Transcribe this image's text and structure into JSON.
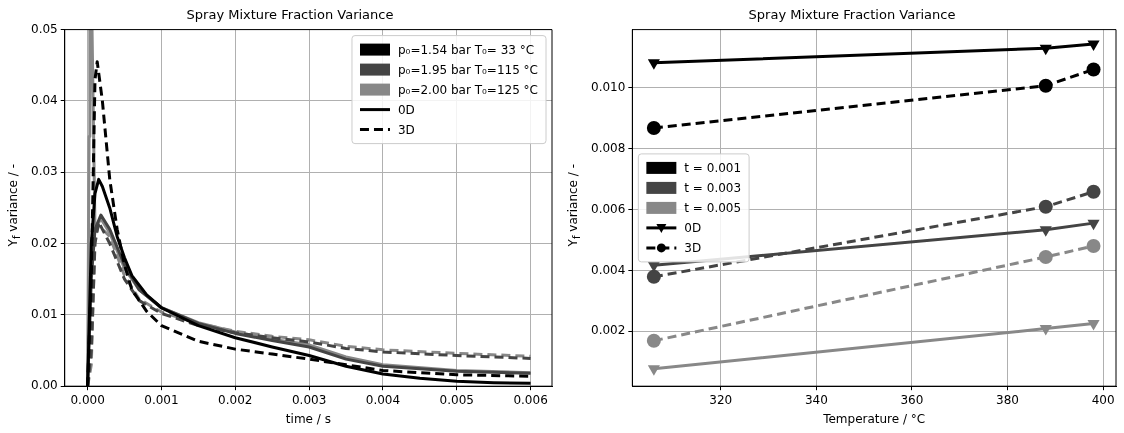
{
  "chart_data": [
    {
      "type": "line",
      "title": "Spray Mixture Fraction Variance",
      "xlabel": "time / s",
      "ylabel": "Y$_{f}$ variance / -",
      "xlim": [
        -0.00031,
        0.00629
      ],
      "ylim": [
        0,
        0.05
      ],
      "xticks": [
        {
          "value": 0,
          "label": "0.000"
        },
        {
          "value": 0.001,
          "label": "0.001"
        },
        {
          "value": 0.002,
          "label": "0.002"
        },
        {
          "value": 0.003,
          "label": "0.003"
        },
        {
          "value": 0.004,
          "label": "0.004"
        },
        {
          "value": 0.005,
          "label": "0.005"
        },
        {
          "value": 0.006,
          "label": "0.006"
        }
      ],
      "yticks": [
        {
          "value": 0,
          "label": "0.00"
        },
        {
          "value": 0.01,
          "label": "0.01"
        },
        {
          "value": 0.02,
          "label": "0.02"
        },
        {
          "value": 0.03,
          "label": "0.03"
        },
        {
          "value": 0.04,
          "label": "0.04"
        },
        {
          "value": 0.05,
          "label": "0.05"
        }
      ],
      "grid": true,
      "legend": "top right",
      "series": [
        {
          "name": "p₀=1.54 bar T₀= 33 °C",
          "color": "#000000",
          "line_style": "solid",
          "x": [
            0,
            5e-05,
            0.0001,
            0.00015,
            0.0002,
            0.0003,
            0.0004,
            0.0005,
            0.0006,
            0.0008,
            0.001,
            0.0015,
            0.002,
            0.0025,
            0.003,
            0.0035,
            0.004,
            0.0045,
            0.005,
            0.0055,
            0.006
          ],
          "values": [
            0,
            0.02,
            0.027,
            0.029,
            0.028,
            0.025,
            0.021,
            0.018,
            0.0155,
            0.0128,
            0.011,
            0.0085,
            0.0068,
            0.0055,
            0.0043,
            0.0028,
            0.0017,
            0.0011,
            0.0007,
            0.0005,
            0.0004
          ]
        },
        {
          "color": "#000000",
          "line_style": "dashed",
          "x": [
            0,
            5e-05,
            0.0001,
            0.00013,
            0.0002,
            0.0003,
            0.0004,
            0.0005,
            0.0006,
            0.0008,
            0.001,
            0.0015,
            0.002,
            0.0025,
            0.003,
            0.0035,
            0.004,
            0.005,
            0.006
          ],
          "values": [
            0,
            0.015,
            0.043,
            0.0455,
            0.04,
            0.029,
            0.022,
            0.017,
            0.0135,
            0.0105,
            0.0085,
            0.0063,
            0.0052,
            0.0045,
            0.0038,
            0.003,
            0.0022,
            0.0016,
            0.0014
          ]
        },
        {
          "name": "p₀=1.95 bar T₀=115 °C",
          "color": "#444444",
          "line_style": "solid",
          "x": [
            0,
            5e-05,
            0.0001,
            0.00018,
            0.0003,
            0.0005,
            0.0007,
            0.001,
            0.0015,
            0.002,
            0.0025,
            0.003,
            0.0035,
            0.004,
            0.005,
            0.006
          ],
          "values": [
            0,
            0.015,
            0.022,
            0.024,
            0.022,
            0.017,
            0.0135,
            0.011,
            0.0088,
            0.0074,
            0.0064,
            0.0055,
            0.0038,
            0.0028,
            0.0021,
            0.0018
          ]
        },
        {
          "color": "#444444",
          "line_style": "dashed",
          "x": [
            0,
            5e-05,
            0.0001,
            0.00015,
            0.0003,
            0.0005,
            0.0007,
            0.001,
            0.0015,
            0.002,
            0.0025,
            0.003,
            0.0035,
            0.004,
            0.005,
            0.006
          ],
          "values": [
            0,
            0.005,
            0.02,
            0.023,
            0.02,
            0.015,
            0.012,
            0.0102,
            0.0085,
            0.0075,
            0.0068,
            0.0062,
            0.0053,
            0.0048,
            0.0043,
            0.0039
          ]
        },
        {
          "name": "p₀=2.00 bar T₀=125 °C",
          "color": "#888888",
          "line_style": "solid",
          "x": [
            0,
            2e-05,
            3e-05,
            6e-05,
            0.0001,
            0.00018,
            0.0003,
            0.0005,
            0.0007,
            0.001,
            0.0015,
            0.002,
            0.0025,
            0.003,
            0.0035,
            0.004,
            0.005,
            0.006
          ],
          "values": [
            0,
            0.035,
            0.05,
            0.05,
            0.022,
            0.0235,
            0.0215,
            0.0165,
            0.0135,
            0.011,
            0.0089,
            0.0076,
            0.0066,
            0.0058,
            0.0041,
            0.003,
            0.0022,
            0.0019
          ]
        },
        {
          "color": "#888888",
          "line_style": "dashed",
          "x": [
            0,
            5e-05,
            0.0001,
            0.00015,
            0.0003,
            0.0005,
            0.0007,
            0.001,
            0.0015,
            0.002,
            0.0025,
            0.003,
            0.0035,
            0.004,
            0.005,
            0.006
          ],
          "values": [
            0,
            0.003,
            0.021,
            0.0225,
            0.021,
            0.0155,
            0.0122,
            0.0104,
            0.0088,
            0.0077,
            0.007,
            0.0065,
            0.0056,
            0.0051,
            0.0046,
            0.0042
          ]
        },
        {
          "name": "0D",
          "color": "#000000",
          "line_style": "solid"
        },
        {
          "name": "3D",
          "color": "#000000",
          "line_style": "dashed"
        }
      ]
    },
    {
      "type": "line",
      "title": "Spray Mixture Fraction Variance",
      "xlabel": "Temperature / °C",
      "ylabel": "Y$_{f}$ variance / -",
      "xlim": [
        301.5,
        402.7
      ],
      "ylim": [
        0.0002,
        0.0119
      ],
      "xticks": [
        320,
        340,
        360,
        380,
        400
      ],
      "yticks": [
        {
          "value": 0.002,
          "label": "0.002"
        },
        {
          "value": 0.004,
          "label": "0.004"
        },
        {
          "value": 0.006,
          "label": "0.006"
        },
        {
          "value": 0.008,
          "label": "0.008"
        },
        {
          "value": 0.01,
          "label": "0.010"
        }
      ],
      "grid": true,
      "legend": "center left",
      "series": [
        {
          "name": "t = 0.001",
          "color": "#000000",
          "line_style": "solid",
          "marker": "triangle",
          "x": [
            306,
            388,
            398
          ],
          "values": [
            0.01081,
            0.01129,
            0.01143
          ]
        },
        {
          "color": "#000000",
          "line_style": "dashed",
          "marker": "circle",
          "x": [
            306,
            388,
            398
          ],
          "values": [
            0.00867,
            0.01006,
            0.01059
          ]
        },
        {
          "name": "t = 0.003",
          "color": "#444444",
          "line_style": "solid",
          "marker": "triangle",
          "x": [
            306,
            388,
            398
          ],
          "values": [
            0.00417,
            0.00533,
            0.00555
          ]
        },
        {
          "color": "#444444",
          "line_style": "dashed",
          "marker": "circle",
          "x": [
            306,
            388,
            398
          ],
          "values": [
            0.00379,
            0.00609,
            0.00658
          ]
        },
        {
          "name": "t = 0.005",
          "color": "#888888",
          "line_style": "solid",
          "marker": "triangle",
          "x": [
            306,
            388,
            398
          ],
          "values": [
            0.00077,
            0.00209,
            0.00226
          ]
        },
        {
          "color": "#888888",
          "line_style": "dashed",
          "marker": "circle",
          "x": [
            306,
            388,
            398
          ],
          "values": [
            0.00169,
            0.00444,
            0.0048
          ]
        },
        {
          "name": "0D",
          "color": "#000000",
          "line_style": "solid",
          "marker": "triangle"
        },
        {
          "name": "3D",
          "color": "#000000",
          "line_style": "dashed",
          "marker": "circle"
        }
      ]
    }
  ]
}
